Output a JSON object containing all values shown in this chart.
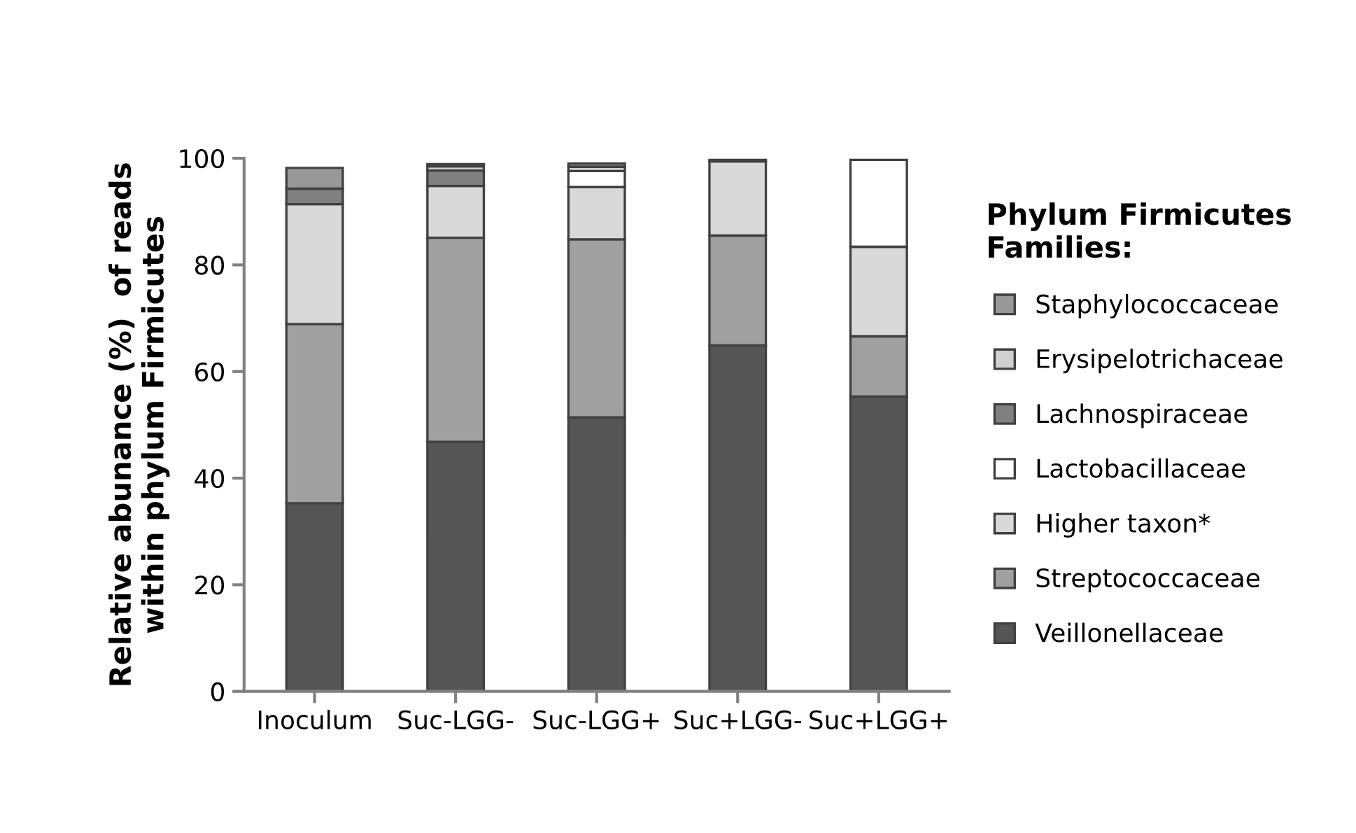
{
  "chart_data": {
    "type": "bar",
    "stacked": true,
    "ylabel": "Relative abunance (%)  of reads\nwithin phylum Firmicutes",
    "legend_title": "Phylum Firmicutes\nFamilies:",
    "legend": "right",
    "grid": false,
    "categories": [
      "Inoculum",
      "Suc-LGG-",
      "Suc-LGG+",
      "Suc+LGG-",
      "Suc+LGG+"
    ],
    "ylim": [
      0,
      100
    ],
    "yticks": [
      0,
      20,
      40,
      60,
      80,
      100
    ],
    "series": [
      {
        "name": "Veillonellaceae",
        "color": "#555555",
        "values": [
          35.3,
          46.8,
          51.4,
          64.9,
          55.3
        ]
      },
      {
        "name": "Streptococcaceae",
        "color": "#a0a0a0",
        "values": [
          33.6,
          38.3,
          33.4,
          20.6,
          11.3
        ]
      },
      {
        "name": "Higher taxon*",
        "color": "#d9d9d9",
        "values": [
          22.5,
          9.7,
          9.8,
          13.9,
          16.8
        ]
      },
      {
        "name": "Lactobacillaceae",
        "color": "#ffffff",
        "values": [
          null,
          null,
          3.0,
          null,
          16.3
        ]
      },
      {
        "name": "Lachnospiraceae",
        "color": "#808080",
        "values": [
          2.9,
          2.9,
          null,
          null,
          null
        ]
      },
      {
        "name": "Erysipelotrichaceae",
        "color": "#d0d0d0",
        "values": [
          null,
          0.8,
          0.8,
          null,
          null
        ]
      },
      {
        "name": "Staphylococcaceae",
        "color": "#989898",
        "values": [
          3.9,
          0.4,
          0.6,
          0.3,
          null
        ]
      }
    ]
  }
}
